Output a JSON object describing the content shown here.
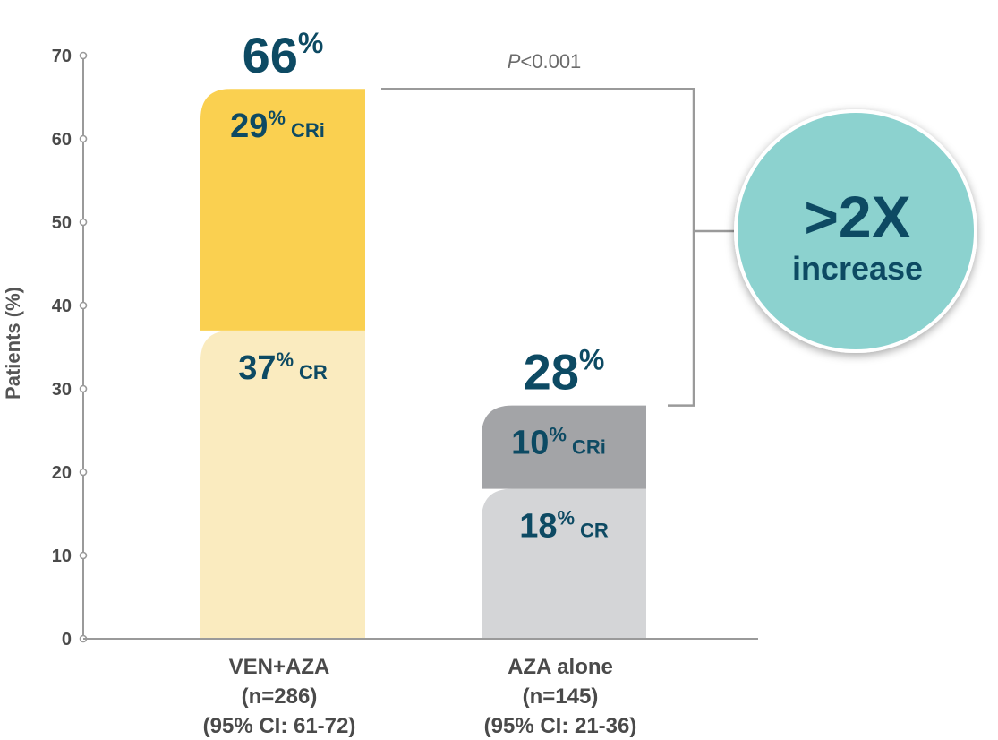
{
  "chart_data": {
    "type": "bar",
    "stacked": true,
    "ylabel": "Patients (%)",
    "ylim": [
      0,
      70
    ],
    "yticks": [
      0,
      10,
      20,
      30,
      40,
      50,
      60,
      70
    ],
    "categories": [
      {
        "name": "VEN+AZA",
        "n": "(n=286)",
        "ci": "(95% CI: 61-72)"
      },
      {
        "name": "AZA alone",
        "n": "(n=145)",
        "ci": "(95% CI: 21-36)"
      }
    ],
    "totals": [
      {
        "value": 66,
        "label": "66",
        "unit": "%"
      },
      {
        "value": 28,
        "label": "28",
        "unit": "%"
      }
    ],
    "series": [
      {
        "name": "CR",
        "values": [
          37,
          18
        ],
        "labels": [
          "37",
          "18"
        ],
        "unit": "%",
        "colors": [
          "#faebbf",
          "#d4d5d7"
        ]
      },
      {
        "name": "CRi",
        "values": [
          29,
          10
        ],
        "labels": [
          "29",
          "10"
        ],
        "unit": "%",
        "colors": [
          "#fad050",
          "#a3a4a7"
        ]
      }
    ],
    "pvalue": {
      "italic": "P",
      "rest": "<0.001"
    },
    "callout": {
      "main": ">2X",
      "sub": "increase",
      "fill": "#8cd2cf",
      "stroke": "#ffffff"
    },
    "colors": {
      "text": "#0d4a63",
      "axis": "#9a9a9a",
      "bracket": "#9a9a9a"
    }
  }
}
